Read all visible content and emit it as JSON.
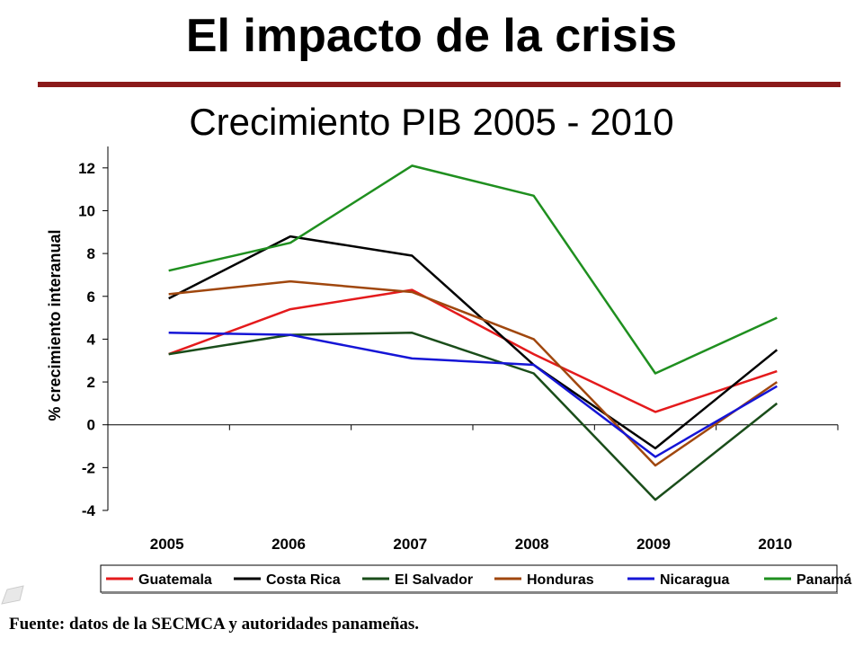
{
  "slide": {
    "title": "El impacto de la crisis",
    "source": "Fuente: datos de la SECMCA y autoridades panameñas.",
    "accent": "#8b1a1a"
  },
  "chart_data": {
    "type": "line",
    "title": "Crecimiento PIB 2005 - 2010",
    "ylabel": "% crecimiento interanual",
    "xlabel": "",
    "categories": [
      "2005",
      "2006",
      "2007",
      "2008",
      "2009",
      "2010"
    ],
    "ylim": [
      -4,
      13
    ],
    "yticks": [
      -4,
      -2,
      0,
      2,
      4,
      6,
      8,
      10,
      12
    ],
    "grid": false,
    "legend_position": "bottom",
    "series": [
      {
        "name": "Guatemala",
        "color": "#e41a1c",
        "values": [
          3.3,
          5.4,
          6.3,
          3.3,
          0.6,
          2.5
        ]
      },
      {
        "name": "Costa Rica",
        "color": "#000000",
        "values": [
          5.9,
          8.8,
          7.9,
          2.8,
          -1.1,
          3.5
        ]
      },
      {
        "name": "El Salvador",
        "color": "#1a4d1a",
        "values": [
          3.3,
          4.2,
          4.3,
          2.4,
          -3.5,
          1.0
        ]
      },
      {
        "name": "Honduras",
        "color": "#a0470e",
        "values": [
          6.1,
          6.7,
          6.2,
          4.0,
          -1.9,
          2.0
        ]
      },
      {
        "name": "Nicaragua",
        "color": "#1515d6",
        "values": [
          4.3,
          4.2,
          3.1,
          2.8,
          -1.5,
          1.8
        ]
      },
      {
        "name": "Panamá",
        "color": "#1f8f1f",
        "values": [
          7.2,
          8.5,
          12.1,
          10.7,
          2.4,
          5.0
        ]
      }
    ]
  }
}
